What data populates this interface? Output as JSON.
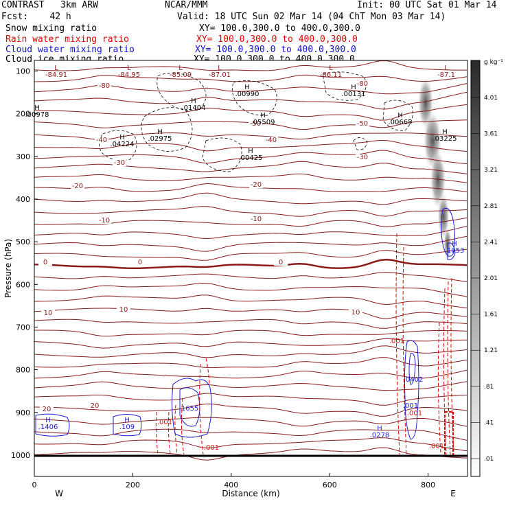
{
  "header": {
    "model": "CONTRAST   3km ARW",
    "org": "NCAR/MMM",
    "init": "Init: 00 UTC Sat 01 Mar 14",
    "fcst": "Fcst:    42 h",
    "valid": "Valid: 18 UTC Sun 02 Mar 14 (04 ChT Mon 03 Mar 14)",
    "fields": [
      {
        "name": "Snow mixing ratio",
        "xy": "XY= 100.0,300.0 to 400.0,300.0",
        "color": "#000000"
      },
      {
        "name": "Rain water mixing ratio",
        "xy": "XY= 100.0,300.0 to 400.0,300.0",
        "color": "#e00000"
      },
      {
        "name": "Cloud water mixing ratio",
        "xy": "XY= 100.0,300.0 to 400.0,300.0",
        "color": "#1010d0"
      },
      {
        "name": "Cloud ice mixing ratio",
        "xy": "XY= 100.0,300.0 to 400.0,300.0",
        "color": "#000000"
      }
    ]
  },
  "chart_data": {
    "type": "contour",
    "xlabel": "Distance (km)",
    "ylabel": "Pressure (hPa)",
    "xlim": [
      0,
      880
    ],
    "ylim": [
      1050,
      75
    ],
    "xticks": [
      "0",
      "200",
      "400",
      "600",
      "800"
    ],
    "yticks": [
      "100",
      "200",
      "300",
      "400",
      "500",
      "600",
      "700",
      "800",
      "900",
      "1000"
    ],
    "x_end_labels": {
      "west": "W",
      "east": "E"
    },
    "colorbar": {
      "unit": "g kg⁻¹",
      "labels": [
        "4.01",
        "3.61",
        "3.21",
        "2.81",
        "2.41",
        "2.01",
        "1.61",
        "1.21",
        ".81",
        ".41",
        ".01"
      ]
    },
    "temperature_contour_labels": [
      "-80",
      "-50",
      "-40",
      "-30",
      "-20",
      "-10",
      "0",
      "10",
      "20"
    ],
    "extrema": [
      {
        "kind": "L",
        "value": "-84.91"
      },
      {
        "kind": "L",
        "value": "-84.95"
      },
      {
        "kind": "L",
        "value": "-85.09"
      },
      {
        "kind": "L",
        "value": "-87.01"
      },
      {
        "kind": "L",
        "value": "-86.11"
      },
      {
        "kind": "L",
        "value": "-87.1"
      },
      {
        "kind": "H",
        "value": ".01404"
      },
      {
        "kind": "H",
        "value": ".00990"
      },
      {
        "kind": "H",
        "value": ".00131"
      },
      {
        "kind": "H",
        "value": ".00978"
      },
      {
        "kind": "H",
        "value": ".05509"
      },
      {
        "kind": "H",
        "value": ".00665"
      },
      {
        "kind": "H",
        "value": ".04224"
      },
      {
        "kind": "H",
        "value": ".02975"
      },
      {
        "kind": "H",
        "value": ".00425"
      },
      {
        "kind": "H",
        "value": ".03225"
      },
      {
        "kind": "H",
        "value": ".1406"
      },
      {
        "kind": "H",
        "value": ".109"
      },
      {
        "kind": "H",
        "value": ".0278"
      },
      {
        "kind": "H",
        "value": ".1053"
      }
    ],
    "cloud_water_labels": [
      ".1655",
      ".0402",
      ".001"
    ],
    "rain_labels": [
      ".001"
    ]
  }
}
